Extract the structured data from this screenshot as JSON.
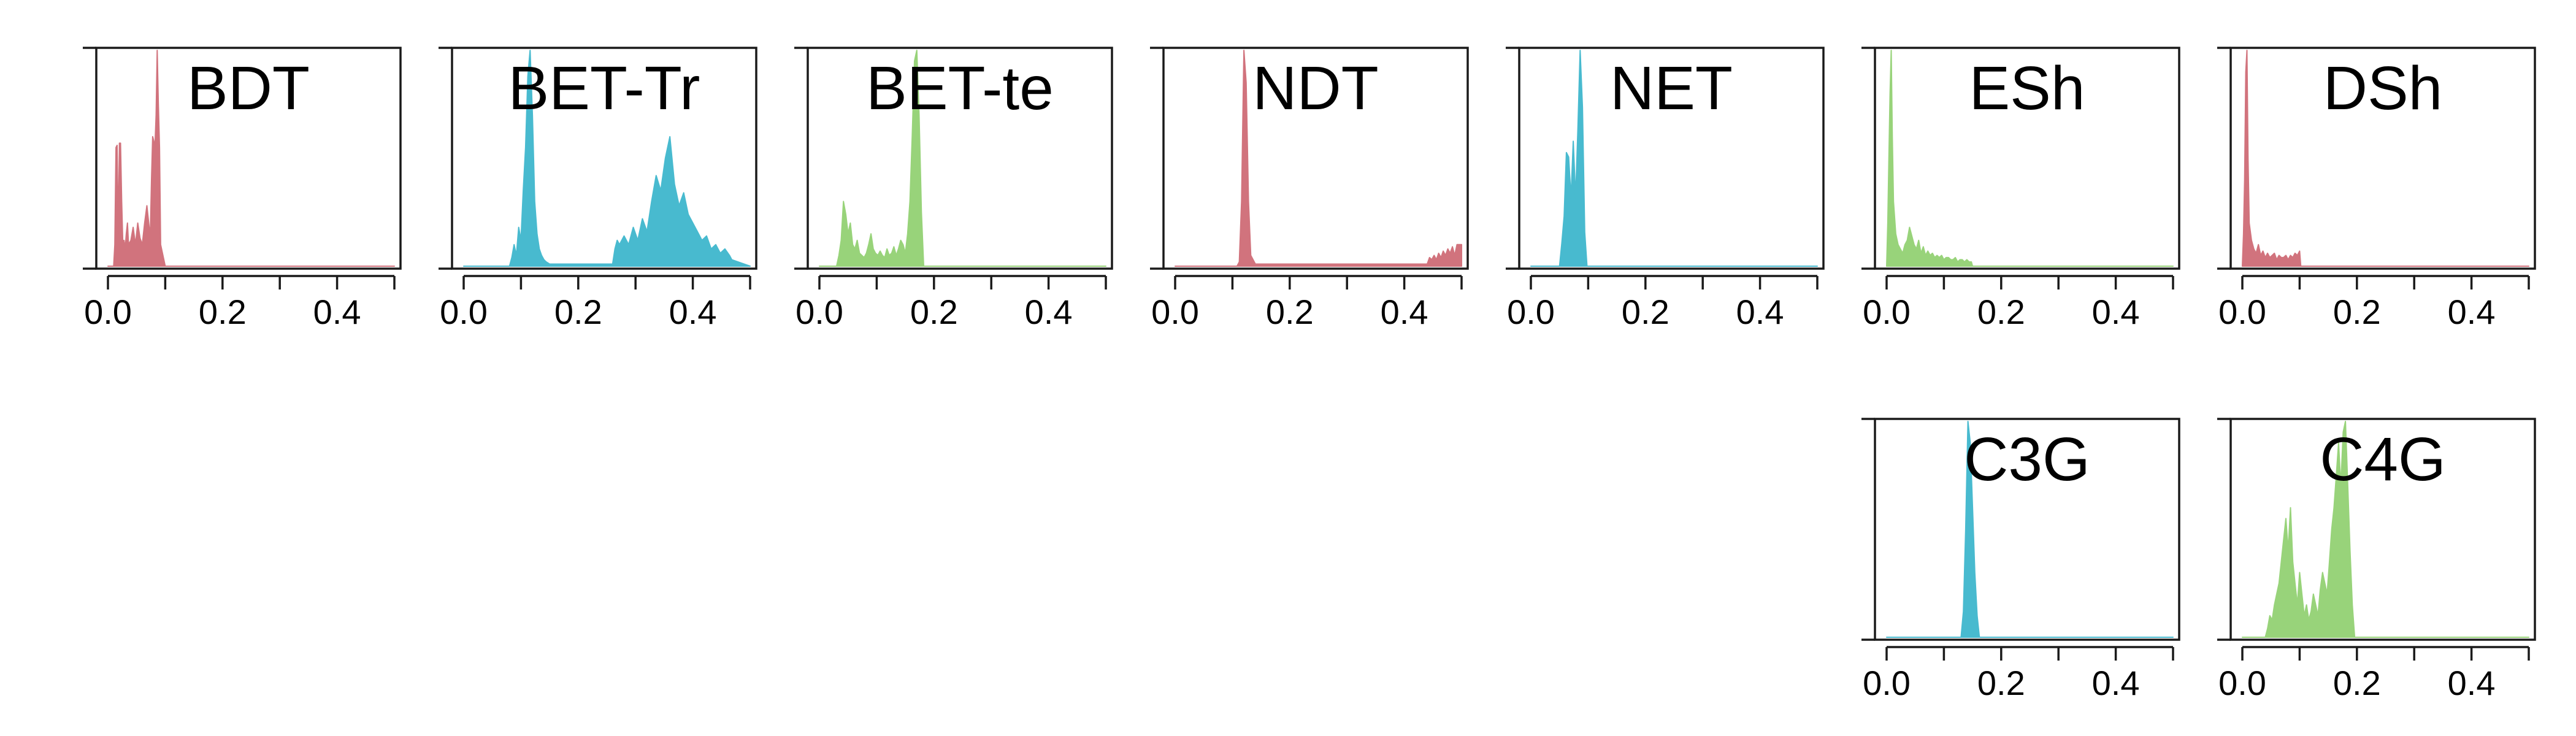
{
  "colors": {
    "red": "#d1737d",
    "blue": "#48bacf",
    "green": "#98d37a",
    "axis": "#1a1a1a"
  },
  "chart_data": [
    {
      "type": "area",
      "title": "BDT",
      "row": 1,
      "col": 1,
      "color": "red",
      "xlim": [
        0,
        0.5
      ],
      "xticks": [
        "0.0",
        "0.2",
        "0.4"
      ],
      "x": [
        0.0,
        0.01,
        0.012,
        0.014,
        0.016,
        0.018,
        0.02,
        0.022,
        0.024,
        0.026,
        0.028,
        0.03,
        0.032,
        0.034,
        0.036,
        0.04,
        0.044,
        0.048,
        0.052,
        0.056,
        0.06,
        0.064,
        0.068,
        0.072,
        0.074,
        0.076,
        0.078,
        0.08,
        0.082,
        0.084,
        0.086,
        0.088,
        0.09,
        0.092,
        0.1,
        0.5
      ],
      "y": [
        0,
        0,
        0.1,
        0.55,
        0.56,
        0.15,
        0.57,
        0.57,
        0.3,
        0.1,
        0.12,
        0.08,
        0.15,
        0.2,
        0.1,
        0.12,
        0.18,
        0.1,
        0.2,
        0.13,
        0.1,
        0.2,
        0.28,
        0.18,
        0.15,
        0.4,
        0.6,
        0.58,
        0.55,
        0.7,
        1.0,
        0.75,
        0.55,
        0.1,
        0,
        0
      ]
    },
    {
      "type": "area",
      "title": "BET-Tr",
      "row": 1,
      "col": 2,
      "color": "blue",
      "xlim": [
        0,
        0.5
      ],
      "xticks": [
        "0.0",
        "0.2",
        "0.4"
      ],
      "x": [
        0.0,
        0.08,
        0.084,
        0.088,
        0.092,
        0.096,
        0.1,
        0.104,
        0.108,
        0.112,
        0.116,
        0.12,
        0.124,
        0.128,
        0.132,
        0.136,
        0.14,
        0.144,
        0.15,
        0.26,
        0.264,
        0.268,
        0.272,
        0.28,
        0.288,
        0.296,
        0.304,
        0.312,
        0.32,
        0.328,
        0.336,
        0.344,
        0.352,
        0.36,
        0.368,
        0.376,
        0.384,
        0.392,
        0.4,
        0.408,
        0.416,
        0.424,
        0.432,
        0.44,
        0.448,
        0.456,
        0.464,
        0.468,
        0.5
      ],
      "y": [
        0,
        0,
        0.04,
        0.1,
        0.05,
        0.18,
        0.12,
        0.35,
        0.55,
        0.88,
        1.0,
        0.7,
        0.3,
        0.15,
        0.08,
        0.05,
        0.03,
        0.02,
        0.01,
        0.01,
        0.08,
        0.12,
        0.1,
        0.14,
        0.1,
        0.18,
        0.12,
        0.22,
        0.16,
        0.3,
        0.42,
        0.35,
        0.5,
        0.6,
        0.38,
        0.28,
        0.34,
        0.24,
        0.2,
        0.16,
        0.12,
        0.14,
        0.08,
        0.1,
        0.06,
        0.08,
        0.05,
        0.03,
        0
      ]
    },
    {
      "type": "area",
      "title": "BET-te",
      "row": 1,
      "col": 3,
      "color": "green",
      "xlim": [
        0,
        0.5
      ],
      "xticks": [
        "0.0",
        "0.2",
        "0.4"
      ],
      "x": [
        0.0,
        0.03,
        0.034,
        0.038,
        0.042,
        0.046,
        0.05,
        0.054,
        0.058,
        0.062,
        0.066,
        0.07,
        0.074,
        0.078,
        0.082,
        0.086,
        0.09,
        0.094,
        0.098,
        0.102,
        0.106,
        0.11,
        0.114,
        0.118,
        0.122,
        0.126,
        0.13,
        0.134,
        0.138,
        0.142,
        0.146,
        0.15,
        0.154,
        0.158,
        0.162,
        0.166,
        0.17,
        0.174,
        0.178,
        0.182,
        0.5
      ],
      "y": [
        0,
        0,
        0.05,
        0.12,
        0.3,
        0.24,
        0.15,
        0.2,
        0.1,
        0.08,
        0.12,
        0.06,
        0.05,
        0.04,
        0.06,
        0.1,
        0.15,
        0.08,
        0.06,
        0.05,
        0.07,
        0.05,
        0.04,
        0.08,
        0.05,
        0.06,
        0.09,
        0.05,
        0.08,
        0.12,
        0.1,
        0.06,
        0.15,
        0.3,
        0.6,
        0.95,
        1.0,
        0.7,
        0.25,
        0,
        0
      ]
    },
    {
      "type": "area",
      "title": "NDT",
      "row": 1,
      "col": 4,
      "color": "red",
      "xlim": [
        0,
        0.5
      ],
      "xticks": [
        "0.0",
        "0.2",
        "0.4"
      ],
      "x": [
        0.0,
        0.108,
        0.112,
        0.116,
        0.12,
        0.124,
        0.128,
        0.132,
        0.14,
        0.44,
        0.444,
        0.448,
        0.452,
        0.456,
        0.46,
        0.464,
        0.468,
        0.472,
        0.476,
        0.48,
        0.484,
        0.488,
        0.492,
        0.5
      ],
      "y": [
        0,
        0,
        0.02,
        0.3,
        1.0,
        0.85,
        0.3,
        0.05,
        0.01,
        0.01,
        0.04,
        0.03,
        0.05,
        0.03,
        0.06,
        0.04,
        0.07,
        0.05,
        0.08,
        0.06,
        0.09,
        0.05,
        0.1,
        0.1
      ]
    },
    {
      "type": "area",
      "title": "NET",
      "row": 1,
      "col": 5,
      "color": "blue",
      "xlim": [
        0,
        0.5
      ],
      "xticks": [
        "0.0",
        "0.2",
        "0.4"
      ],
      "x": [
        0.0,
        0.05,
        0.054,
        0.058,
        0.062,
        0.066,
        0.07,
        0.074,
        0.078,
        0.082,
        0.086,
        0.09,
        0.094,
        0.098,
        0.5
      ],
      "y": [
        0,
        0,
        0.1,
        0.22,
        0.5,
        0.48,
        0.3,
        0.55,
        0.3,
        0.6,
        0.95,
        0.7,
        0.15,
        0,
        0
      ]
    },
    {
      "type": "area",
      "title": "ESh",
      "row": 1,
      "col": 6,
      "color": "green",
      "xlim": [
        0,
        0.5
      ],
      "xticks": [
        "0.0",
        "0.2",
        "0.4"
      ],
      "x": [
        0.0,
        0.002,
        0.004,
        0.006,
        0.008,
        0.01,
        0.012,
        0.016,
        0.02,
        0.024,
        0.028,
        0.032,
        0.036,
        0.04,
        0.044,
        0.048,
        0.052,
        0.056,
        0.06,
        0.064,
        0.068,
        0.072,
        0.076,
        0.08,
        0.084,
        0.088,
        0.092,
        0.096,
        0.1,
        0.104,
        0.108,
        0.112,
        0.116,
        0.12,
        0.124,
        0.128,
        0.132,
        0.136,
        0.14,
        0.144,
        0.148,
        0.15,
        0.5
      ],
      "y": [
        0,
        0.2,
        0.5,
        0.8,
        1.0,
        0.6,
        0.3,
        0.15,
        0.1,
        0.08,
        0.06,
        0.1,
        0.12,
        0.18,
        0.14,
        0.1,
        0.08,
        0.12,
        0.06,
        0.09,
        0.05,
        0.07,
        0.05,
        0.06,
        0.04,
        0.05,
        0.04,
        0.05,
        0.03,
        0.04,
        0.04,
        0.03,
        0.03,
        0.04,
        0.02,
        0.03,
        0.03,
        0.02,
        0.03,
        0.02,
        0.02,
        0,
        0
      ]
    },
    {
      "type": "area",
      "title": "DSh",
      "row": 1,
      "col": 7,
      "color": "red",
      "xlim": [
        0,
        0.5
      ],
      "xticks": [
        "0.0",
        "0.2",
        "0.4"
      ],
      "x": [
        0.0,
        0.002,
        0.004,
        0.006,
        0.008,
        0.01,
        0.012,
        0.016,
        0.02,
        0.024,
        0.028,
        0.032,
        0.036,
        0.04,
        0.044,
        0.048,
        0.052,
        0.056,
        0.06,
        0.064,
        0.068,
        0.072,
        0.076,
        0.08,
        0.084,
        0.088,
        0.092,
        0.096,
        0.1,
        0.102,
        0.5
      ],
      "y": [
        0,
        0.15,
        0.4,
        0.9,
        1.0,
        0.5,
        0.2,
        0.12,
        0.08,
        0.06,
        0.1,
        0.05,
        0.07,
        0.04,
        0.06,
        0.04,
        0.05,
        0.06,
        0.03,
        0.05,
        0.04,
        0.04,
        0.05,
        0.03,
        0.05,
        0.04,
        0.06,
        0.05,
        0.07,
        0,
        0
      ]
    },
    {
      "type": "area",
      "title": "C3G",
      "row": 2,
      "col": 6,
      "color": "blue",
      "xlim": [
        0,
        0.5
      ],
      "xticks": [
        "0.0",
        "0.2",
        "0.4"
      ],
      "x": [
        0.0,
        0.13,
        0.134,
        0.138,
        0.142,
        0.146,
        0.15,
        0.154,
        0.158,
        0.162,
        0.5
      ],
      "y": [
        0,
        0,
        0.12,
        0.5,
        1.0,
        0.9,
        0.6,
        0.3,
        0.1,
        0,
        0
      ]
    },
    {
      "type": "area",
      "title": "C4G",
      "row": 2,
      "col": 7,
      "color": "green",
      "xlim": [
        0,
        0.5
      ],
      "xticks": [
        "0.0",
        "0.2",
        "0.4"
      ],
      "x": [
        0.0,
        0.04,
        0.044,
        0.048,
        0.052,
        0.056,
        0.06,
        0.064,
        0.068,
        0.072,
        0.076,
        0.08,
        0.084,
        0.088,
        0.092,
        0.096,
        0.1,
        0.104,
        0.108,
        0.112,
        0.116,
        0.12,
        0.124,
        0.128,
        0.132,
        0.136,
        0.14,
        0.144,
        0.148,
        0.152,
        0.156,
        0.16,
        0.164,
        0.168,
        0.172,
        0.176,
        0.18,
        0.184,
        0.188,
        0.192,
        0.196,
        0.5
      ],
      "y": [
        0,
        0,
        0.04,
        0.1,
        0.08,
        0.15,
        0.2,
        0.25,
        0.35,
        0.45,
        0.55,
        0.4,
        0.6,
        0.35,
        0.25,
        0.15,
        0.3,
        0.2,
        0.1,
        0.15,
        0.08,
        0.12,
        0.2,
        0.15,
        0.1,
        0.22,
        0.3,
        0.25,
        0.2,
        0.35,
        0.5,
        0.6,
        0.75,
        0.9,
        0.7,
        0.95,
        1.0,
        0.7,
        0.4,
        0.15,
        0,
        0
      ]
    }
  ]
}
